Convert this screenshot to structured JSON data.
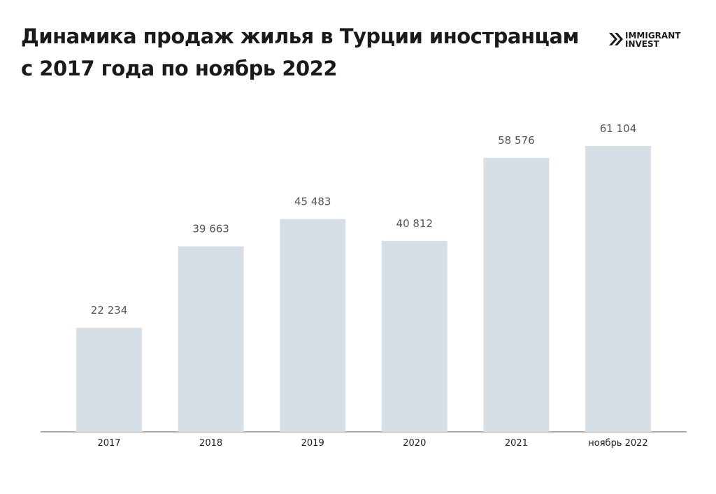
{
  "chart_data": {
    "type": "bar",
    "title_lines": [
      "Динамика продаж жилья в Турции иностранцам",
      "с 2017 года по ноябрь 2022"
    ],
    "brand": [
      "IMMIGRANT",
      "INVEST"
    ],
    "categories": [
      "2017",
      "2018",
      "2019",
      "2020",
      "2021",
      "ноябрь 2022"
    ],
    "values": [
      22234,
      39663,
      45483,
      40812,
      58576,
      61104
    ],
    "value_labels": [
      "22 234",
      "39 663",
      "45 483",
      "40 812",
      "58 576",
      "61 104"
    ],
    "color": "#d5dfe5"
  }
}
